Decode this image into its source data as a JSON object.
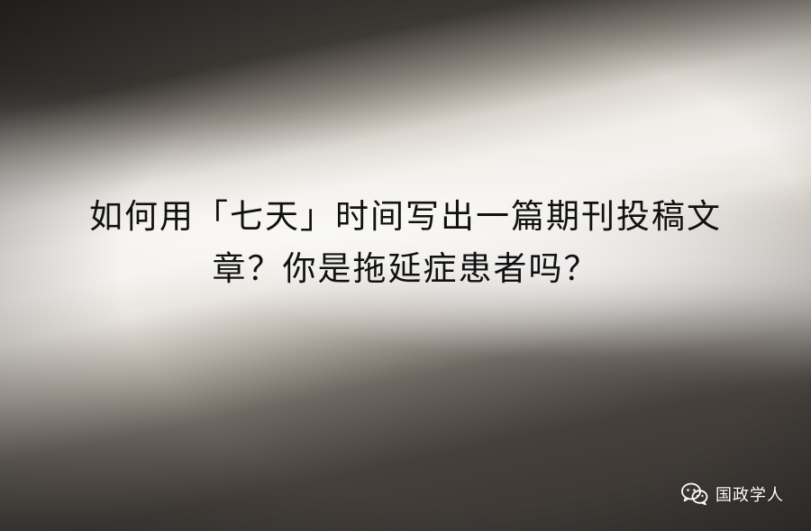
{
  "headline": {
    "line1": "如何用「七天」时间写出一篇期刊投稿文",
    "line2": "章？你是拖延症患者吗？"
  },
  "watermark": {
    "icon": "wechat-icon",
    "text": "国政学人"
  }
}
